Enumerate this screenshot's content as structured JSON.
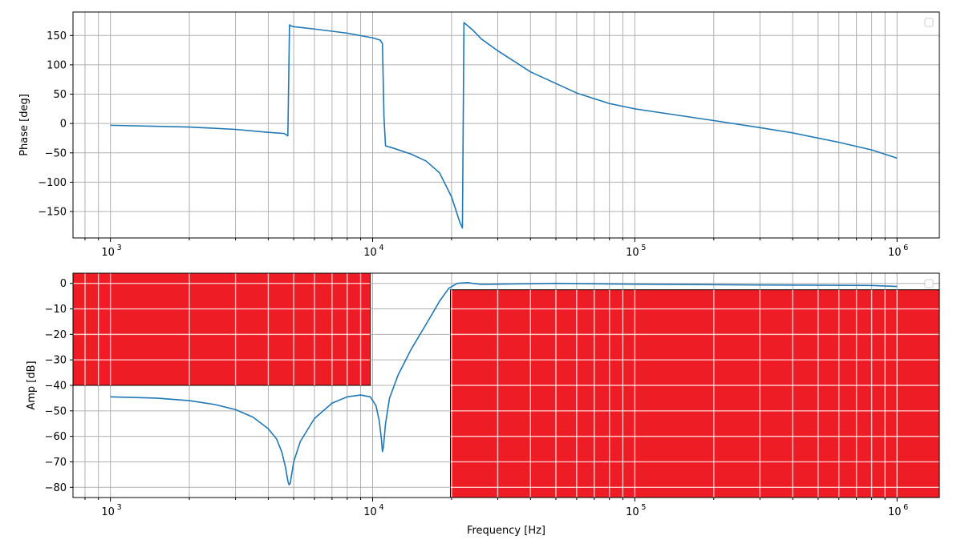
{
  "chart_data": [
    {
      "type": "line",
      "xscale": "log",
      "xlim": [
        720,
        1450000
      ],
      "ylim": [
        -195,
        190
      ],
      "xlabel": "",
      "ylabel": "Phase [deg]",
      "grid": true,
      "legend": "top-right",
      "x_ticks": [
        {
          "value": 1000,
          "base": "10",
          "exp": "3"
        },
        {
          "value": 10000,
          "base": "10",
          "exp": "4"
        },
        {
          "value": 100000,
          "base": "10",
          "exp": "5"
        },
        {
          "value": 1000000,
          "base": "10",
          "exp": "6"
        }
      ],
      "y_ticks": [
        {
          "value": 150,
          "label": "150"
        },
        {
          "value": 100,
          "label": "100"
        },
        {
          "value": 50,
          "label": "50"
        },
        {
          "value": 0,
          "label": "0"
        },
        {
          "value": -50,
          "label": "−50"
        },
        {
          "value": -100,
          "label": "−100"
        },
        {
          "value": -150,
          "label": "−150"
        }
      ],
      "series": [
        {
          "color": "#1f77b4",
          "x": [
            1000,
            2000,
            3000,
            4000,
            4600,
            4750,
            4820,
            4900,
            5000,
            6000,
            8000,
            10000,
            10700,
            10900,
            11050,
            11200,
            12000,
            14000,
            16000,
            18000,
            20000,
            21500,
            22000,
            22300,
            24000,
            26000,
            30000,
            40000,
            60000,
            80000,
            100000,
            200000,
            300000,
            400000,
            600000,
            800000,
            1000000
          ],
          "y": [
            -3,
            -6,
            -10,
            -15,
            -17,
            -21,
            168,
            166,
            165,
            161,
            154,
            146,
            142,
            136,
            10,
            -38,
            -42,
            -52,
            -64,
            -84,
            -125,
            -168,
            -178,
            172,
            160,
            144,
            124,
            88,
            52,
            34,
            25,
            5,
            -7,
            -16,
            -32,
            -45,
            -59
          ]
        }
      ]
    },
    {
      "type": "line",
      "xscale": "log",
      "xlim": [
        720,
        1450000
      ],
      "ylim": [
        -84,
        4
      ],
      "xlabel": "Frequency [Hz]",
      "ylabel": "Amp [dB]",
      "grid": true,
      "legend": "top-right",
      "x_ticks": [
        {
          "value": 1000,
          "base": "10",
          "exp": "3"
        },
        {
          "value": 10000,
          "base": "10",
          "exp": "4"
        },
        {
          "value": 100000,
          "base": "10",
          "exp": "5"
        },
        {
          "value": 1000000,
          "base": "10",
          "exp": "6"
        }
      ],
      "y_ticks": [
        {
          "value": 0,
          "label": "0"
        },
        {
          "value": -10,
          "label": "−10"
        },
        {
          "value": -20,
          "label": "−20"
        },
        {
          "value": -30,
          "label": "−30"
        },
        {
          "value": -40,
          "label": "−40"
        },
        {
          "value": -50,
          "label": "−50"
        },
        {
          "value": -60,
          "label": "−60"
        },
        {
          "value": -70,
          "label": "−70"
        },
        {
          "value": -80,
          "label": "−80"
        }
      ],
      "series": [
        {
          "color": "#1f77b4",
          "x": [
            1000,
            1500,
            2000,
            2500,
            3000,
            3500,
            4000,
            4300,
            4500,
            4650,
            4750,
            4800,
            4850,
            5000,
            5300,
            6000,
            7000,
            8000,
            9000,
            9800,
            10300,
            10600,
            10800,
            10900,
            11000,
            11200,
            11600,
            12500,
            14000,
            16000,
            18000,
            19500,
            21000,
            23000,
            26000,
            30000,
            50000,
            100000,
            300000,
            800000,
            1000000
          ],
          "y": [
            -44.5,
            -45,
            -46,
            -47.5,
            -49.5,
            -52.5,
            -57,
            -61,
            -66,
            -72,
            -77.5,
            -79,
            -78.5,
            -70,
            -62,
            -53,
            -47,
            -44.5,
            -43.8,
            -44.5,
            -48,
            -54,
            -61,
            -66,
            -64,
            -55,
            -45,
            -36,
            -26,
            -16,
            -7,
            -2,
            0,
            0.3,
            -0.4,
            -0.3,
            0,
            -0.3,
            -0.6,
            -0.8,
            -1.2
          ]
        }
      ],
      "overlays": [
        {
          "color": "#ee1c24",
          "x_range": [
            720,
            9800
          ],
          "y_range": [
            -40,
            4
          ]
        },
        {
          "color": "#ee1c24",
          "x_range": [
            19800,
            1450000
          ],
          "y_range": [
            -84,
            -2.5
          ]
        }
      ]
    }
  ]
}
